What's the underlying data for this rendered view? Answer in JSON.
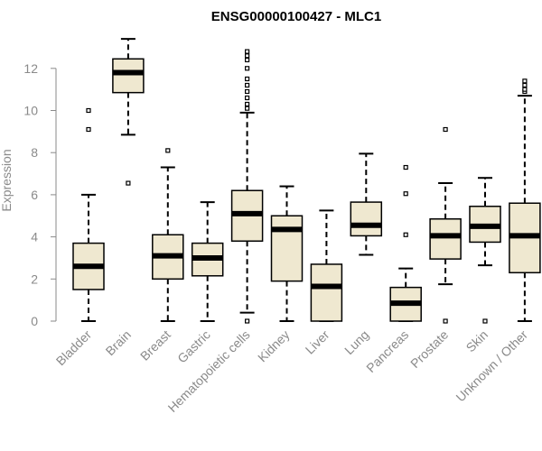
{
  "chart_data": {
    "type": "boxplot",
    "title": "ENSG00000100427 - MLC1",
    "xlabel": "",
    "ylabel": "Expression",
    "ylim": [
      0,
      13.2
    ],
    "yticks": [
      0,
      2,
      4,
      6,
      8,
      10,
      12
    ],
    "colors": {
      "box_fill": "#efe8d0",
      "box_stroke": "#000000",
      "axis": "#8a8a8a",
      "text": "#8a8a8a"
    },
    "categories": [
      "Bladder",
      "Brain",
      "Breast",
      "Gastric",
      "Hematopoietic cells",
      "Kidney",
      "Liver",
      "Lung",
      "Pancreas",
      "Prostate",
      "Skin",
      "Unknown / Other"
    ],
    "boxes": [
      {
        "category": "Bladder",
        "whisker_low": 0,
        "q1": 1.5,
        "median": 2.6,
        "q3": 3.7,
        "whisker_high": 6.0,
        "outliers": [
          9.1,
          10.0
        ]
      },
      {
        "category": "Brain",
        "whisker_low": 8.85,
        "q1": 10.85,
        "median": 11.8,
        "q3": 12.45,
        "whisker_high": 13.4,
        "outliers": [
          6.55
        ]
      },
      {
        "category": "Breast",
        "whisker_low": 0,
        "q1": 2.0,
        "median": 3.1,
        "q3": 4.1,
        "whisker_high": 7.3,
        "outliers": [
          8.1
        ]
      },
      {
        "category": "Gastric",
        "whisker_low": 0,
        "q1": 2.15,
        "median": 3.0,
        "q3": 3.7,
        "whisker_high": 5.65,
        "outliers": []
      },
      {
        "category": "Hematopoietic cells",
        "whisker_low": 0.4,
        "q1": 3.8,
        "median": 5.1,
        "q3": 6.2,
        "whisker_high": 9.9,
        "outliers": [
          0,
          10.1,
          10.3,
          10.6,
          10.9,
          11.2,
          11.5,
          12.0,
          12.4,
          12.6,
          12.8
        ]
      },
      {
        "category": "Kidney",
        "whisker_low": 0,
        "q1": 1.9,
        "median": 4.35,
        "q3": 5.0,
        "whisker_high": 6.4,
        "outliers": []
      },
      {
        "category": "Liver",
        "whisker_low": 0,
        "q1": 0,
        "median": 1.65,
        "q3": 2.7,
        "whisker_high": 5.25,
        "outliers": []
      },
      {
        "category": "Lung",
        "whisker_low": 3.15,
        "q1": 4.05,
        "median": 4.55,
        "q3": 5.65,
        "whisker_high": 7.95,
        "outliers": []
      },
      {
        "category": "Pancreas",
        "whisker_low": 0,
        "q1": 0,
        "median": 0.85,
        "q3": 1.6,
        "whisker_high": 2.5,
        "outliers": [
          4.1,
          6.05,
          7.3
        ]
      },
      {
        "category": "Prostate",
        "whisker_low": 1.75,
        "q1": 2.95,
        "median": 4.05,
        "q3": 4.85,
        "whisker_high": 6.55,
        "outliers": [
          0,
          9.1
        ]
      },
      {
        "category": "Skin",
        "whisker_low": 2.65,
        "q1": 3.75,
        "median": 4.5,
        "q3": 5.45,
        "whisker_high": 6.8,
        "outliers": [
          0
        ]
      },
      {
        "category": "Unknown / Other",
        "whisker_low": 0,
        "q1": 2.3,
        "median": 4.05,
        "q3": 5.6,
        "whisker_high": 10.7,
        "outliers": [
          10.9,
          11.0,
          11.2,
          11.4
        ]
      }
    ]
  }
}
